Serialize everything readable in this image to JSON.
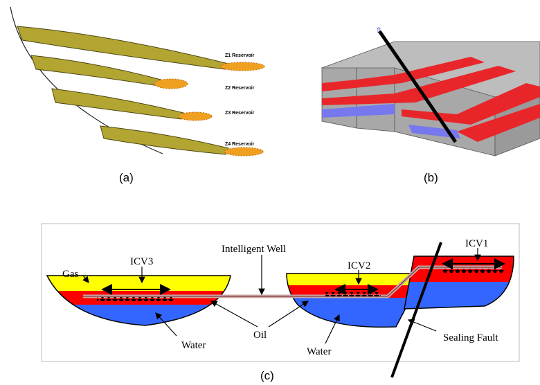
{
  "panels": [
    {
      "caption": "(a)",
      "labels": [
        "Z1 Reservoir",
        "Z2 Reservoir",
        "Z3 Reservoir",
        "Z4 Reservoir"
      ]
    },
    {
      "caption": "(b)"
    },
    {
      "caption": "(c)",
      "labels": [
        "Gas",
        "ICV3",
        "Intelligent Well",
        "ICV2",
        "ICV1",
        "Oil",
        "Water",
        "Water",
        "Sealing Fault"
      ]
    }
  ]
}
